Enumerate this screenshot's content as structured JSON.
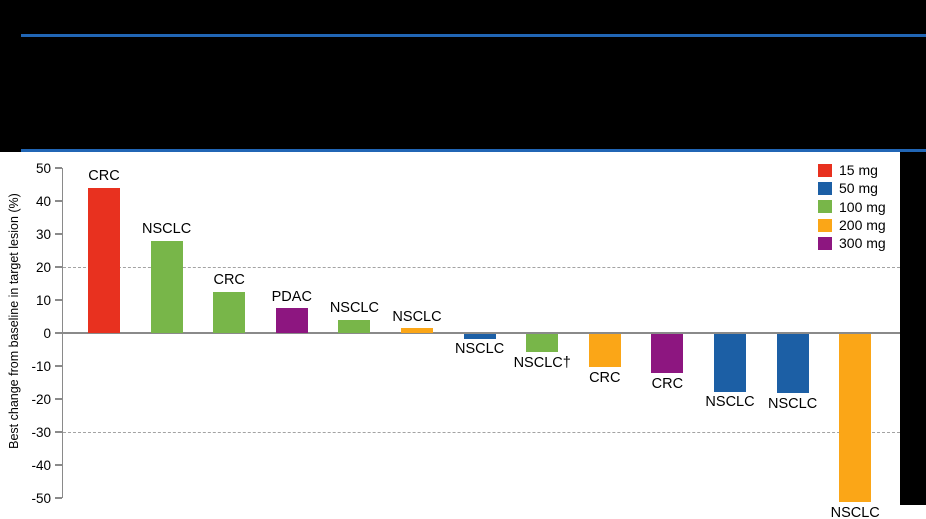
{
  "header": {
    "rule_color": "#2166b5",
    "background_color": "#000000"
  },
  "chart_data": {
    "type": "bar",
    "variant": "waterfall",
    "title": "",
    "xlabel": "",
    "ylabel": "Best change from baseline in target lesion (%)",
    "ylim": [
      -50,
      50
    ],
    "yticks": [
      50,
      40,
      30,
      20,
      10,
      0,
      -10,
      -20,
      -30,
      -40,
      -50
    ],
    "dashed_gridlines_at": [
      20,
      -30
    ],
    "grid": "dashed-reference-lines-only",
    "legend_position": "top-right",
    "categories": [
      "CRC",
      "NSCLC",
      "CRC",
      "PDAC",
      "NSCLC",
      "NSCLC",
      "NSCLC",
      "NSCLC†",
      "CRC",
      "CRC",
      "NSCLC",
      "NSCLC",
      "NSCLC"
    ],
    "values": [
      44,
      28,
      12.5,
      7.5,
      4,
      1.5,
      -1.5,
      -5.5,
      -10,
      -12,
      -17.5,
      -18,
      -51
    ],
    "doses": [
      "15 mg",
      "100 mg",
      "100 mg",
      "300 mg",
      "100 mg",
      "200 mg",
      "50 mg",
      "100 mg",
      "200 mg",
      "300 mg",
      "50 mg",
      "50 mg",
      "200 mg"
    ],
    "legend": [
      {
        "label": "15 mg",
        "color": "#e8311f"
      },
      {
        "label": "50 mg",
        "color": "#1c5fa5"
      },
      {
        "label": "100 mg",
        "color": "#78b649"
      },
      {
        "label": "200 mg",
        "color": "#fba617"
      },
      {
        "label": "300 mg",
        "color": "#8d1680"
      }
    ]
  }
}
